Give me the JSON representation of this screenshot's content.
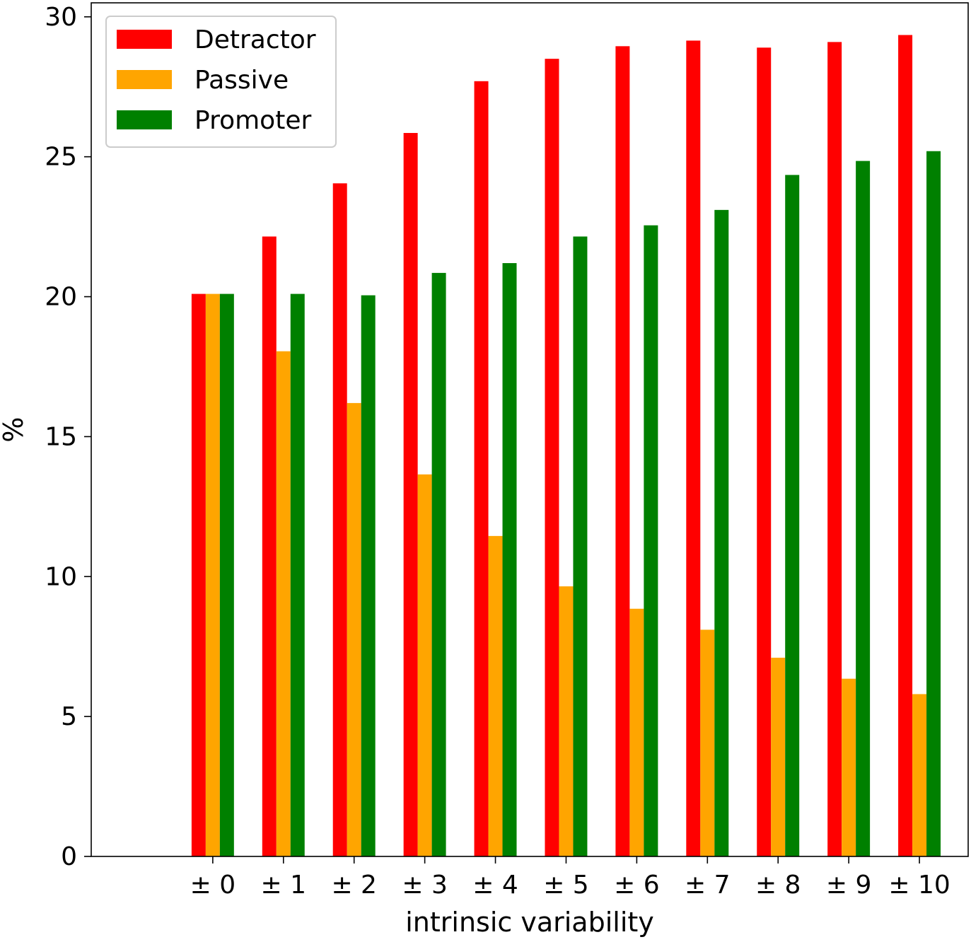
{
  "chart_data": {
    "type": "bar",
    "title": "",
    "xlabel": "intrinsic variability",
    "ylabel": "%",
    "categories": [
      "± 0",
      "± 1",
      "± 2",
      "± 3",
      "± 4",
      "± 5",
      "± 6",
      "± 7",
      "± 8",
      "± 9",
      "± 10"
    ],
    "ylim": [
      0,
      30.5
    ],
    "yticks": [
      0,
      5,
      10,
      15,
      20,
      25,
      30
    ],
    "ytick_labels": [
      "0",
      "5",
      "10",
      "15",
      "20",
      "25",
      "30"
    ],
    "grid": false,
    "legend_position": "top-left",
    "series": [
      {
        "name": "Detractor",
        "color": "#ff0000",
        "values": [
          20.1,
          22.15,
          24.05,
          25.85,
          27.7,
          28.5,
          28.95,
          29.15,
          28.9,
          29.1,
          29.35
        ]
      },
      {
        "name": "Passive",
        "color": "#ffa500",
        "values": [
          20.1,
          18.05,
          16.2,
          13.65,
          11.45,
          9.65,
          8.85,
          8.1,
          7.1,
          6.35,
          5.8
        ]
      },
      {
        "name": "Promoter",
        "color": "#008000",
        "values": [
          20.1,
          20.1,
          20.05,
          20.85,
          21.2,
          22.15,
          22.55,
          23.1,
          24.35,
          24.85,
          25.2
        ]
      }
    ]
  }
}
